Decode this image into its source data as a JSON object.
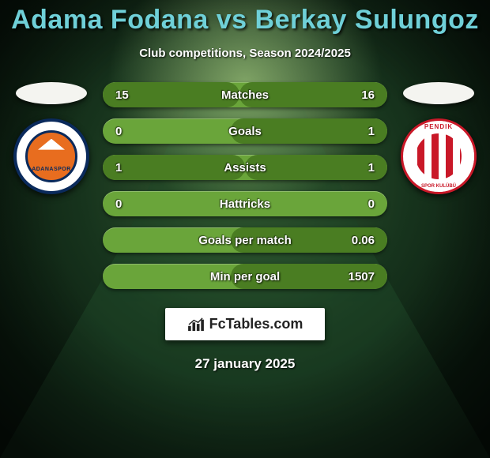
{
  "background": {
    "color_top": "#1a3a1f",
    "color_mid": "#12301a",
    "color_bottom": "#0e2216",
    "stripe_color_a": "#204a28",
    "stripe_color_b": "#183c20",
    "spot_color": "#c9f28a",
    "vignette": "rgba(0,0,0,0.55)"
  },
  "title": {
    "text": "Adama Fodana vs Berkay Sulungoz",
    "color": "#6fd0d8",
    "fontsize": 34
  },
  "subtitle": {
    "text": "Club competitions, Season 2024/2025",
    "color": "#ffffff",
    "fontsize": 15
  },
  "left_side": {
    "ellipse_color": "#f4f4f0",
    "club_name": "ADANASPOR",
    "club_primary": "#e86d1f",
    "club_secondary": "#0a2a5c"
  },
  "right_side": {
    "ellipse_color": "#f4f4f0",
    "club_name": "PENDIK",
    "club_sub": "SPOR KULÜBÜ",
    "club_primary": "#c91828",
    "club_secondary": "#ffffff"
  },
  "bars": {
    "track_color": "#6aa53a",
    "fill_color": "#4a7d22",
    "text_color": "#ffffff",
    "height": 32,
    "radius": 16,
    "fontsize": 15,
    "rows": [
      {
        "label": "Matches",
        "left": "15",
        "right": "16",
        "left_pct": 48,
        "right_pct": 52
      },
      {
        "label": "Goals",
        "left": "0",
        "right": "1",
        "left_pct": 0,
        "right_pct": 55
      },
      {
        "label": "Assists",
        "left": "1",
        "right": "1",
        "left_pct": 50,
        "right_pct": 50
      },
      {
        "label": "Hattricks",
        "left": "0",
        "right": "0",
        "left_pct": 0,
        "right_pct": 0
      },
      {
        "label": "Goals per match",
        "left": "",
        "right": "0.06",
        "left_pct": 0,
        "right_pct": 55
      },
      {
        "label": "Min per goal",
        "left": "",
        "right": "1507",
        "left_pct": 0,
        "right_pct": 55
      }
    ]
  },
  "brand": {
    "text": "FcTables.com",
    "text_color": "#222222",
    "bg": "#ffffff",
    "fontsize": 18
  },
  "date": {
    "text": "27 january 2025",
    "color": "#ffffff",
    "fontsize": 17
  }
}
